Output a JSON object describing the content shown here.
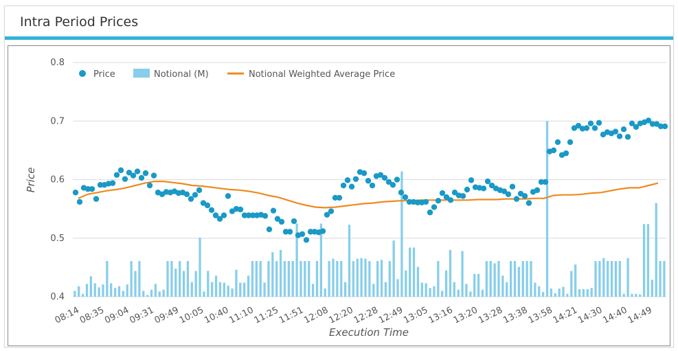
{
  "panel": {
    "title": "Intra Period Prices"
  },
  "colors": {
    "accent": "#32b4d8",
    "price": "#1a99c6",
    "notional": "#87ceeb",
    "vwap": "#ef8a1e",
    "grid": "#e0e0e0"
  },
  "chart_data": {
    "type": "bar+line+scatter",
    "xlabel": "Execution Time",
    "ylabel": "Price",
    "ylim": [
      0.4,
      0.8
    ],
    "y_ticks": [
      "0.4",
      "0.5",
      "0.6",
      "0.7",
      "0.8"
    ],
    "x_tick_labels": [
      "08:14",
      "08:35",
      "09:04",
      "09:31",
      "09:49",
      "10:05",
      "10:40",
      "11:10",
      "11:25",
      "11:51",
      "12:08",
      "12:20",
      "12:28",
      "12:49",
      "13:05",
      "13:16",
      "13:20",
      "13:28",
      "13:38",
      "13:58",
      "14:21",
      "14:30",
      "14:40",
      "14:49"
    ],
    "grid": "horizontal",
    "legend": {
      "position": "top-left",
      "items": [
        "Price",
        "Notional (M)",
        "Notional Weighted Average Price"
      ]
    },
    "series": [
      {
        "name": "Price",
        "kind": "scatter",
        "values": [
          0.578,
          0.562,
          0.586,
          0.584,
          0.584,
          0.567,
          0.591,
          0.591,
          0.593,
          0.594,
          0.608,
          0.616,
          0.601,
          0.612,
          0.607,
          0.614,
          0.603,
          0.611,
          0.59,
          0.607,
          0.578,
          0.575,
          0.579,
          0.578,
          0.58,
          0.577,
          0.578,
          0.575,
          0.567,
          0.574,
          0.582,
          0.56,
          0.556,
          0.548,
          0.539,
          0.533,
          0.539,
          0.572,
          0.546,
          0.55,
          0.549,
          0.539,
          0.539,
          0.539,
          0.539,
          0.54,
          0.538,
          0.515,
          0.547,
          0.533,
          0.528,
          0.511,
          0.511,
          0.529,
          0.505,
          0.507,
          0.497,
          0.511,
          0.511,
          0.51,
          0.512,
          0.54,
          0.546,
          0.569,
          0.569,
          0.59,
          0.599,
          0.588,
          0.601,
          0.613,
          0.611,
          0.598,
          0.59,
          0.606,
          0.608,
          0.603,
          0.596,
          0.591,
          0.6,
          0.578,
          0.57,
          0.562,
          0.562,
          0.561,
          0.561,
          0.562,
          0.544,
          0.553,
          0.564,
          0.577,
          0.57,
          0.565,
          0.578,
          0.573,
          0.572,
          0.583,
          0.599,
          0.587,
          0.586,
          0.585,
          0.597,
          0.59,
          0.585,
          0.582,
          0.58,
          0.575,
          0.588,
          0.567,
          0.576,
          0.572,
          0.56,
          0.579,
          0.582,
          0.596,
          0.596,
          0.648,
          0.65,
          0.664,
          0.642,
          0.645,
          0.664,
          0.688,
          0.692,
          0.687,
          0.688,
          0.696,
          0.688,
          0.697,
          0.677,
          0.681,
          0.679,
          0.682,
          0.674,
          0.686,
          0.673,
          0.696,
          0.69,
          0.696,
          0.698,
          0.701,
          0.695,
          0.695,
          0.691,
          0.691
        ]
      },
      {
        "name": "Notional (M)",
        "kind": "bar",
        "values": [
          0.01,
          0.018,
          0.005,
          0.022,
          0.035,
          0.023,
          0.016,
          0.021,
          0.061,
          0.023,
          0.015,
          0.018,
          0.01,
          0.021,
          0.061,
          0.044,
          0.061,
          0.01,
          0.003,
          0.012,
          0.022,
          0.009,
          0.012,
          0.061,
          0.061,
          0.048,
          0.061,
          0.044,
          0.061,
          0.025,
          0.044,
          0.101,
          0.009,
          0.044,
          0.025,
          0.036,
          0.025,
          0.024,
          0.019,
          0.014,
          0.046,
          0.024,
          0.024,
          0.036,
          0.061,
          0.061,
          0.061,
          0.024,
          0.061,
          0.076,
          0.061,
          0.08,
          0.061,
          0.061,
          0.061,
          0.125,
          0.061,
          0.061,
          0.061,
          0.022,
          0.061,
          0.125,
          0.014,
          0.061,
          0.065,
          0.061,
          0.061,
          0.025,
          0.123,
          0.061,
          0.065,
          0.066,
          0.065,
          0.061,
          0.022,
          0.061,
          0.063,
          0.025,
          0.061,
          0.096,
          0.03,
          0.214,
          0.045,
          0.084,
          0.084,
          0.051,
          0.024,
          0.023,
          0.015,
          0.018,
          0.061,
          0.01,
          0.045,
          0.08,
          0.025,
          0.012,
          0.078,
          0.022,
          0.009,
          0.039,
          0.039,
          0.012,
          0.061,
          0.061,
          0.057,
          0.061,
          0.036,
          0.025,
          0.061,
          0.061,
          0.051,
          0.061,
          0.061,
          0.061,
          0.024,
          0.018,
          0.008,
          0.3,
          0.014,
          0.006,
          0.014,
          0.017,
          0.005,
          0.044,
          0.055,
          0.013,
          0.013,
          0.013,
          0.015,
          0.061,
          0.061,
          0.066,
          0.061,
          0.061,
          0.061,
          0.061,
          0.005,
          0.066,
          0.005,
          0.005,
          0.004,
          0.124,
          0.124,
          0.029,
          0.16,
          0.061,
          0.061
        ]
      },
      {
        "name": "Notional Weighted Average Price",
        "kind": "line",
        "values": [
          0.568,
          0.575,
          0.578,
          0.581,
          0.583,
          0.586,
          0.59,
          0.594,
          0.597,
          0.597,
          0.595,
          0.593,
          0.59,
          0.589,
          0.587,
          0.585,
          0.583,
          0.582,
          0.58,
          0.577,
          0.573,
          0.57,
          0.565,
          0.56,
          0.556,
          0.553,
          0.552,
          0.553,
          0.555,
          0.557,
          0.559,
          0.56,
          0.562,
          0.563,
          0.564,
          0.564,
          0.565,
          0.565,
          0.565,
          0.565,
          0.565,
          0.565,
          0.566,
          0.566,
          0.566,
          0.567,
          0.567,
          0.567,
          0.568,
          0.568,
          0.573,
          0.574,
          0.574,
          0.575,
          0.577,
          0.578,
          0.581,
          0.584,
          0.586,
          0.586,
          0.59,
          0.594
        ]
      }
    ]
  }
}
